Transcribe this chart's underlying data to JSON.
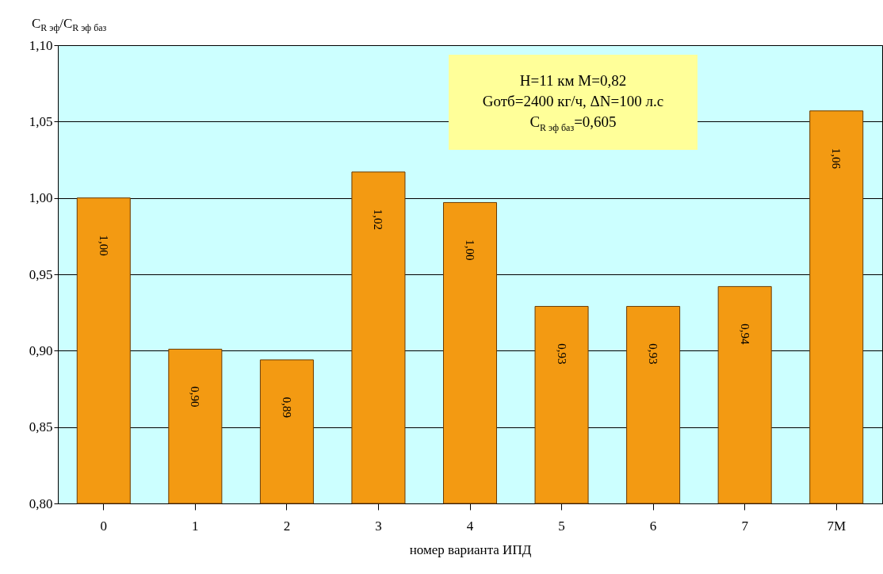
{
  "chart_data": {
    "type": "bar",
    "categories": [
      "0",
      "1",
      "2",
      "3",
      "4",
      "5",
      "6",
      "7",
      "7M"
    ],
    "values": [
      1.0,
      0.901,
      0.894,
      1.017,
      0.997,
      0.929,
      0.929,
      0.942,
      1.057
    ],
    "value_labels": [
      "1,00",
      "0,90",
      "0,89",
      "1,02",
      "1,00",
      "0,93",
      "0,93",
      "0,94",
      "1,06"
    ],
    "color": "#f39a12",
    "ylabel": "C$_{R эф}$/C$_{R эф баз}$",
    "xlabel": "номер варианта ИПД",
    "annotations": [
      "H=11 км  M=0,82",
      "Gотб=2400 кг/ч, ΔN=100 л.с",
      "C$_{R эф баз}$=0,605"
    ],
    "ylim": [
      0.8,
      1.1
    ],
    "yticks": [
      {
        "value": 0.8,
        "label": "0,80"
      },
      {
        "value": 0.85,
        "label": "0,85"
      },
      {
        "value": 0.9,
        "label": "0,90"
      },
      {
        "value": 0.95,
        "label": "0,95"
      },
      {
        "value": 1.0,
        "label": "1,00"
      },
      {
        "value": 1.05,
        "label": "1,05"
      },
      {
        "value": 1.1,
        "label": "1,10"
      }
    ],
    "grid": "y"
  }
}
